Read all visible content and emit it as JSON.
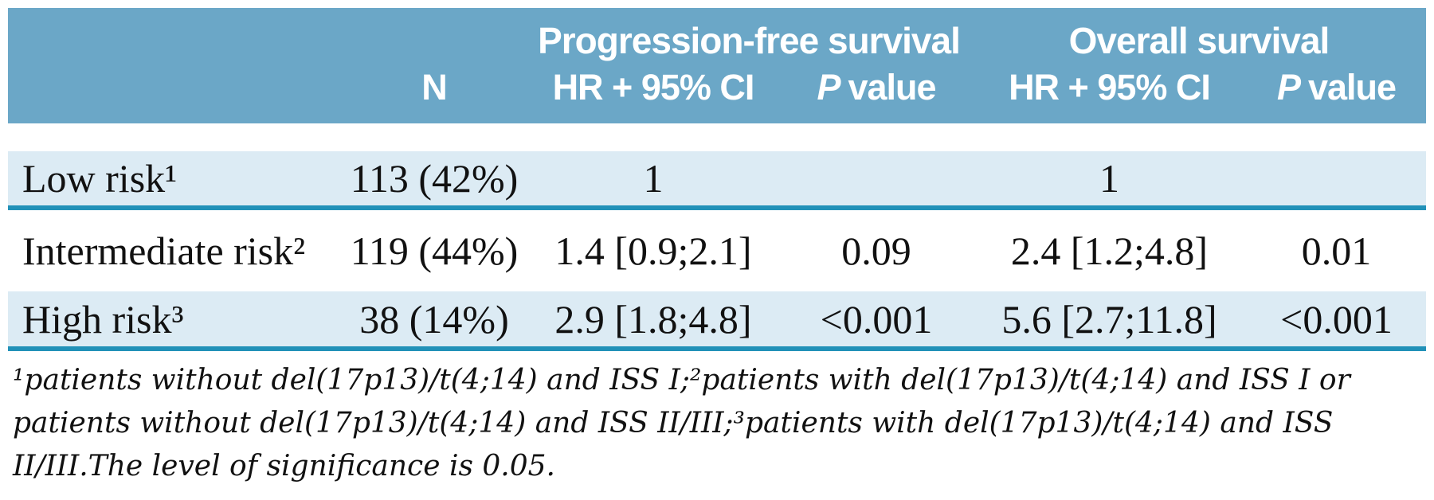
{
  "colors": {
    "header_bg": "#6BA7C7",
    "row_alt_bg": "#DCEBF4",
    "row_white_bg": "#FFFFFF",
    "rule_teal": "#2191B8",
    "header_text": "#FFFFFF",
    "body_text": "#111111"
  },
  "table": {
    "header": {
      "pfs_group": "Progression-free survival",
      "os_group": "Overall survival",
      "n": "N",
      "hr_ci_pfs": "HR + 95% CI",
      "hr_ci_os": "HR + 95% CI",
      "p_italic": "P",
      "p_rest": "value"
    },
    "rows": [
      {
        "label": "Low risk¹",
        "n": "113 (42%)",
        "pfs_hr": "1",
        "pfs_p": "",
        "os_hr": "1",
        "os_p": ""
      },
      {
        "label": "Intermediate risk²",
        "n": "119 (44%)",
        "pfs_hr": "1.4 [0.9;2.1]",
        "pfs_p": "0.09",
        "os_hr": "2.4 [1.2;4.8]",
        "os_p": "0.01"
      },
      {
        "label": "High risk³",
        "n": "38 (14%)",
        "pfs_hr": "2.9 [1.8;4.8]",
        "pfs_p": "<0.001",
        "os_hr": "5.6 [2.7;11.8]",
        "os_p": "<0.001"
      }
    ],
    "footnote_lines": [
      "¹patients without del(17p13)/t(4;14) and ISS I;²patients with del(17p13)/t(4;14) and ISS I or",
      "patients without del(17p13)/t(4;14) and ISS II/III;³patients with del(17p13)/t(4;14) and ISS",
      "II/III.The level of significance is 0.05."
    ]
  }
}
